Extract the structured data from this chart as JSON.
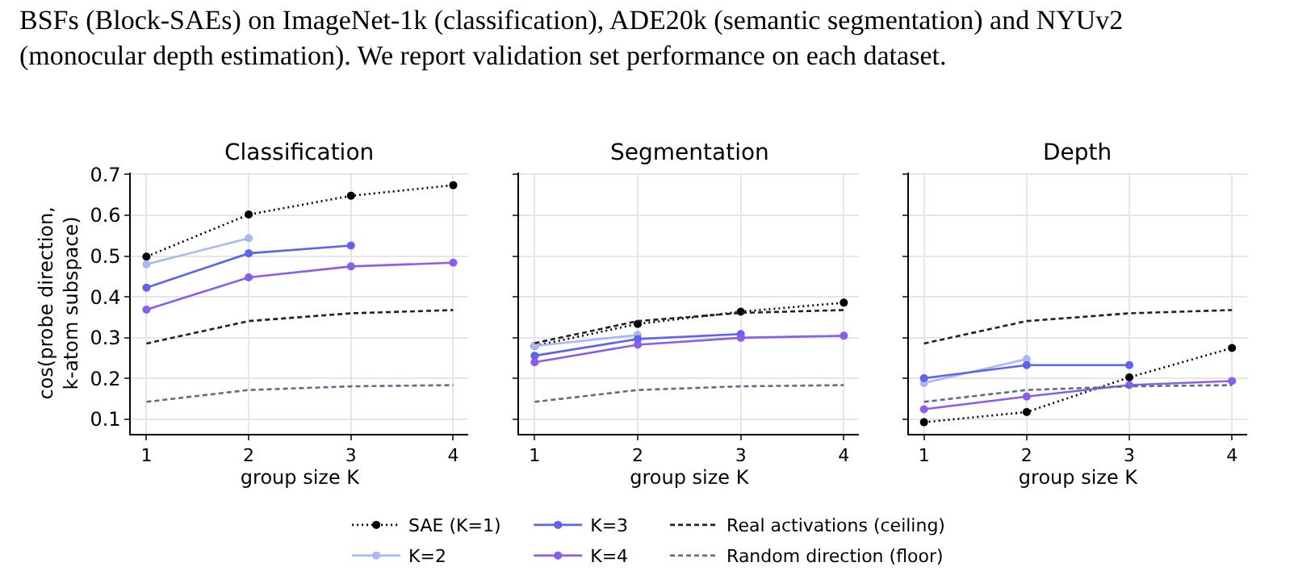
{
  "chart_data": [
    {
      "type": "line",
      "title": "Classification",
      "xlabel": "group size K",
      "ylabel": "cos(probe direction,\nk-atom subspace)",
      "annotations": [
        "BSFs (Block-SAEs) on ImageNet-1k (classification), ADE20k (semantic segmentation) and NYUv2",
        "(monocular depth estimation). We report validation set performance on each dataset."
      ],
      "x": [
        1,
        2,
        3,
        4
      ],
      "xlim": [
        0.85,
        4.15
      ],
      "xticks": [
        1,
        2,
        3,
        4
      ],
      "ylim": [
        0.065,
        0.705
      ],
      "yticks": [
        0.1,
        0.2,
        0.3,
        0.4,
        0.5,
        0.6,
        0.7
      ],
      "grid": true,
      "legend": "bottom",
      "series": [
        {
          "name": "SAE (K=1)",
          "color": "#000000",
          "values": [
            0.499,
            0.602,
            0.648,
            0.674
          ],
          "marker": "circle",
          "line_style": "dotted"
        },
        {
          "name": "K=2",
          "color": "#a6b8f5",
          "values": [
            0.48,
            0.544,
            null,
            null
          ],
          "marker": "circle",
          "line_style": "solid"
        },
        {
          "name": "K=3",
          "color": "#5b63f0",
          "values": [
            0.423,
            0.507,
            0.526,
            null
          ],
          "marker": "circle",
          "line_style": "solid"
        },
        {
          "name": "K=4",
          "color": "#8a5cf0",
          "values": [
            0.369,
            0.448,
            0.475,
            0.484
          ],
          "marker": "circle",
          "line_style": "solid"
        },
        {
          "name": "Real activations (ceiling)",
          "color": "#222222",
          "values": [
            0.286,
            0.341,
            0.36,
            0.368
          ],
          "marker": "none",
          "line_style": "dashed"
        },
        {
          "name": "Random direction (floor)",
          "color": "#5a6e8c",
          "values": [
            0.143,
            0.172,
            0.181,
            0.184
          ],
          "marker": "none",
          "line_style": "dashed"
        }
      ]
    },
    {
      "type": "line",
      "title": "Segmentation",
      "xlabel": "group size K",
      "tick_labels": "x",
      "x": [
        1,
        2,
        3,
        4
      ],
      "xlim": [
        0.85,
        4.15
      ],
      "xticks": [
        1,
        2,
        3,
        4
      ],
      "ylim": [
        0.065,
        0.705
      ],
      "yticks": [
        0.1,
        0.2,
        0.3,
        0.4,
        0.5,
        0.6,
        0.7
      ],
      "grid": true,
      "series": [
        {
          "color": "#000000",
          "values": [
            0.28,
            0.334,
            0.364,
            0.386
          ],
          "marker": "circle",
          "line_style": "dotted"
        },
        {
          "color": "#a6b8f5",
          "values": [
            0.28,
            0.307,
            null,
            null
          ],
          "marker": "circle",
          "line_style": "solid"
        },
        {
          "color": "#5b63f0",
          "values": [
            0.256,
            0.297,
            0.309,
            null
          ],
          "marker": "circle",
          "line_style": "solid"
        },
        {
          "color": "#8a5cf0",
          "values": [
            0.24,
            0.283,
            0.3,
            0.305
          ],
          "marker": "circle",
          "line_style": "solid"
        },
        {
          "color": "#222222",
          "values": [
            0.287,
            0.341,
            0.361,
            0.368
          ],
          "marker": "none",
          "line_style": "dashed"
        },
        {
          "color": "#5a6e8c",
          "values": [
            0.143,
            0.172,
            0.181,
            0.184
          ],
          "marker": "none",
          "line_style": "dashed"
        }
      ]
    },
    {
      "type": "line",
      "title": "Depth",
      "xlabel": "group size K",
      "tick_labels": "x",
      "x": [
        1,
        2,
        3,
        4
      ],
      "xlim": [
        0.85,
        4.15
      ],
      "xticks": [
        1,
        2,
        3,
        4
      ],
      "ylim": [
        0.065,
        0.705
      ],
      "yticks": [
        0.1,
        0.2,
        0.3,
        0.4,
        0.5,
        0.6,
        0.7
      ],
      "grid": true,
      "series": [
        {
          "color": "#000000",
          "values": [
            0.093,
            0.118,
            0.203,
            0.275
          ],
          "marker": "circle",
          "line_style": "dotted"
        },
        {
          "color": "#a6b8f5",
          "values": [
            0.189,
            0.248,
            null,
            null
          ],
          "marker": "circle",
          "line_style": "solid"
        },
        {
          "color": "#5b63f0",
          "values": [
            0.201,
            0.233,
            0.233,
            null
          ],
          "marker": "circle",
          "line_style": "solid"
        },
        {
          "color": "#8a5cf0",
          "values": [
            0.125,
            0.156,
            0.184,
            0.194
          ],
          "marker": "circle",
          "line_style": "solid"
        },
        {
          "color": "#222222",
          "values": [
            0.286,
            0.341,
            0.36,
            0.368
          ],
          "marker": "none",
          "line_style": "dashed"
        },
        {
          "color": "#5a6e8c",
          "values": [
            0.143,
            0.172,
            0.181,
            0.184
          ],
          "marker": "none",
          "line_style": "dashed"
        }
      ]
    }
  ]
}
